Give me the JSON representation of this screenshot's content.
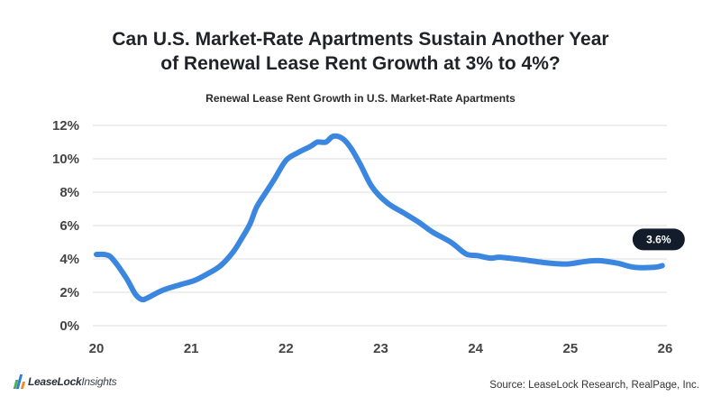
{
  "header": {
    "title_line1": "Can U.S. Market-Rate Apartments Sustain Another Year",
    "title_line2": "of Renewal Lease Rent Growth at 3% to 4%?",
    "subtitle": "Renewal Lease Rent Growth in U.S. Market-Rate Apartments"
  },
  "footer": {
    "logo_bold": "LeaseLock",
    "logo_light": "Insights",
    "source": "Source: LeaseLock Research, RealPage, Inc."
  },
  "colors": {
    "series": "#3b87e0",
    "badge": "#121c2a",
    "logo_bars": [
      "#4caf50",
      "#2e7be0",
      "#f08a24"
    ]
  },
  "chart_data": {
    "type": "line",
    "title": "Renewal Lease Rent Growth in U.S. Market-Rate Apartments",
    "xlabel": "",
    "ylabel": "",
    "xlim": [
      20,
      26
    ],
    "ylim": [
      0,
      12
    ],
    "grid": true,
    "x_ticks": [
      "20",
      "21",
      "22",
      "23",
      "24",
      "25",
      "26"
    ],
    "y_ticks": [
      "0%",
      "2%",
      "4%",
      "6%",
      "8%",
      "10%",
      "12%"
    ],
    "y_tick_values": [
      0,
      2,
      4,
      6,
      8,
      10,
      12
    ],
    "x_tick_values": [
      20,
      21,
      22,
      23,
      24,
      25,
      26
    ],
    "series": [
      {
        "name": "Renewal Lease Rent Growth",
        "x": [
          20.0,
          20.1,
          20.17,
          20.31,
          20.41,
          20.48,
          20.55,
          20.69,
          20.88,
          21.03,
          21.17,
          21.31,
          21.44,
          21.53,
          21.62,
          21.69,
          21.79,
          21.88,
          22.0,
          22.12,
          22.26,
          22.33,
          22.42,
          22.5,
          22.6,
          22.69,
          22.79,
          22.91,
          23.07,
          23.26,
          23.4,
          23.55,
          23.74,
          23.9,
          24.02,
          24.16,
          24.26,
          24.5,
          24.78,
          24.97,
          25.16,
          25.3,
          25.49,
          25.68,
          25.89,
          25.97
        ],
        "y": [
          4.27,
          4.25,
          4.0,
          2.9,
          1.9,
          1.57,
          1.7,
          2.1,
          2.45,
          2.7,
          3.1,
          3.6,
          4.4,
          5.2,
          6.1,
          7.1,
          8.0,
          8.8,
          9.9,
          10.35,
          10.75,
          11.0,
          11.0,
          11.35,
          11.2,
          10.6,
          9.6,
          8.3,
          7.35,
          6.7,
          6.2,
          5.6,
          5.0,
          4.3,
          4.2,
          4.05,
          4.1,
          3.95,
          3.75,
          3.7,
          3.85,
          3.9,
          3.75,
          3.5,
          3.5,
          3.6
        ]
      }
    ],
    "annotations": [
      {
        "text": "3.6%",
        "x": 25.97,
        "y": 3.6,
        "style": "dark-pill-label"
      }
    ]
  }
}
